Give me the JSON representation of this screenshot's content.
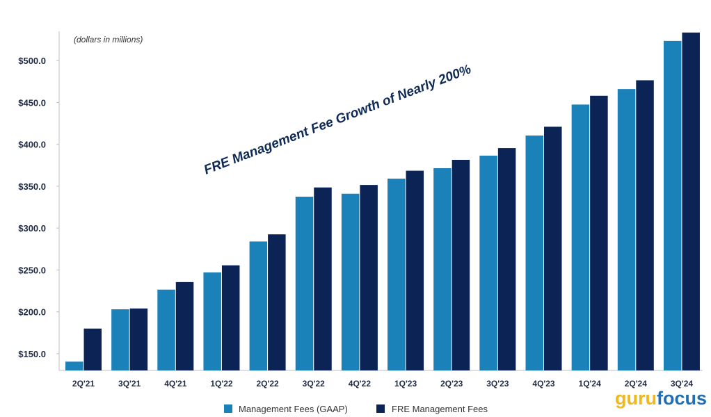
{
  "chart_data": {
    "type": "bar",
    "note": "(dollars in millions)",
    "headline": "FRE Management Fee Growth of Nearly 200%",
    "categories": [
      "2Q'21",
      "3Q'21",
      "4Q'21",
      "1Q'22",
      "2Q'22",
      "3Q'22",
      "4Q'22",
      "1Q'23",
      "2Q'23",
      "3Q'23",
      "4Q'23",
      "1Q'24",
      "2Q'24",
      "3Q'24"
    ],
    "series": [
      {
        "name": "Management Fees (GAAP)",
        "color": "#1a81b9",
        "values": [
          140.5,
          203.0,
          226.5,
          247.0,
          284.0,
          337.5,
          341.0,
          359.0,
          371.5,
          386.5,
          410.5,
          447.5,
          466.0,
          523.5
        ]
      },
      {
        "name": "FRE Management Fees",
        "color": "#0b2455",
        "values": [
          180.0,
          204.0,
          235.5,
          255.5,
          292.5,
          348.5,
          351.5,
          368.5,
          381.5,
          395.5,
          421.0,
          458.0,
          476.5,
          533.5
        ]
      }
    ],
    "ylim": [
      130,
      535
    ],
    "yticks": [
      150,
      200,
      250,
      300,
      350,
      400,
      450,
      500
    ],
    "ytick_labels": [
      "$150.0",
      "$200.0",
      "$250.0",
      "$300.0",
      "$350.0",
      "$400.0",
      "$450.0",
      "$500.0"
    ],
    "grid": false,
    "legend_position": "bottom"
  },
  "watermark": {
    "part1": "guru",
    "part2": "focus"
  }
}
